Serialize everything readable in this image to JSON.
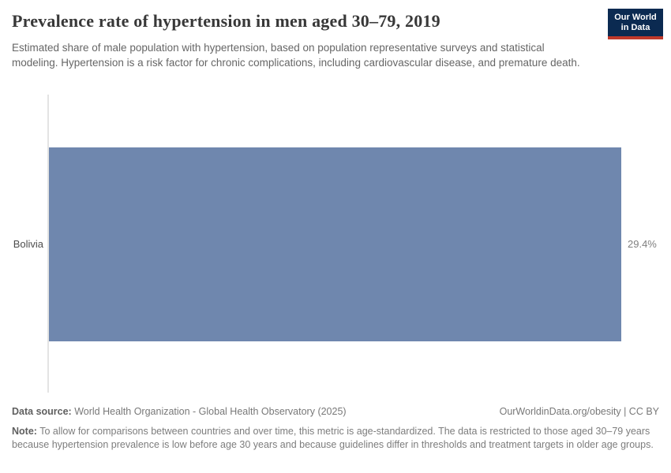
{
  "header": {
    "title": "Prevalence rate of hypertension in men aged 30–79, 2019",
    "subtitle": "Estimated share of male population with hypertension, based on population representative surveys and statistical modeling. Hypertension is a risk factor for chronic complications, including cardiovascular disease, and premature death.",
    "logo": {
      "line1": "Our World",
      "line2": "in Data"
    }
  },
  "chart_data": {
    "type": "bar",
    "orientation": "horizontal",
    "title": "Prevalence rate of hypertension in men aged 30–79, 2019",
    "categories": [
      "Bolivia"
    ],
    "values": [
      29.4
    ],
    "value_labels": [
      "29.4%"
    ],
    "xlabel": "",
    "ylabel": "",
    "xlim": [
      0,
      29.4
    ],
    "grid": false,
    "legend": false,
    "bar_color": "#6f87ae"
  },
  "footer": {
    "datasource_label": "Data source:",
    "datasource_text": " World Health Organization - Global Health Observatory (2025)",
    "attribution": "OurWorldinData.org/obesity | CC BY",
    "note_label": "Note:",
    "note_text": " To allow for comparisons between countries and over time, this metric is age-standardized. The data is restricted to those aged 30–79 years because hypertension prevalence is low before age 30 years and because guidelines differ in thresholds and treatment targets in older age groups."
  },
  "colors": {
    "bar": "#6f87ae",
    "logo_background": "#0b2a51",
    "logo_accent_red": "#c0392b",
    "title_text": "#383838",
    "subtitle_text": "#666666",
    "axis_line": "#e3e3e3",
    "footer_text": "#787878"
  }
}
